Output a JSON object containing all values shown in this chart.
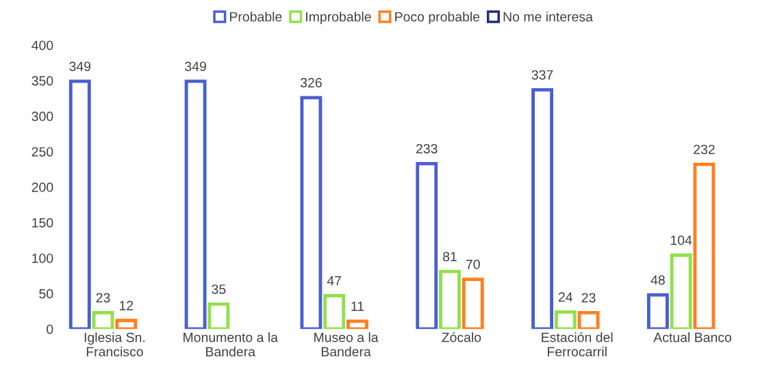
{
  "chart_data": {
    "type": "bar",
    "categories": [
      "Iglesia Sn.\nFrancisco",
      "Monumento a la\nBandera",
      "Museo a la\nBandera",
      "Zócalo",
      "Estación del\nFerrocarril",
      "Actual Banco"
    ],
    "series": [
      {
        "name": "Probable",
        "color": "#4a5fd0",
        "values": [
          349,
          349,
          326,
          233,
          337,
          48
        ]
      },
      {
        "name": "Improbable",
        "color": "#92e04a",
        "values": [
          23,
          35,
          47,
          81,
          24,
          104
        ]
      },
      {
        "name": "Poco probable",
        "color": "#ff7f1e",
        "values": [
          12,
          null,
          11,
          70,
          23,
          232
        ]
      },
      {
        "name": "No me interesa",
        "color": "#1f2d7a",
        "values": [
          null,
          null,
          null,
          null,
          null,
          null
        ]
      }
    ],
    "ylim": [
      0,
      400
    ],
    "yticks": [
      0,
      50,
      100,
      150,
      200,
      250,
      300,
      350,
      400
    ],
    "grid": false,
    "legend": "top",
    "data_labels": true
  }
}
